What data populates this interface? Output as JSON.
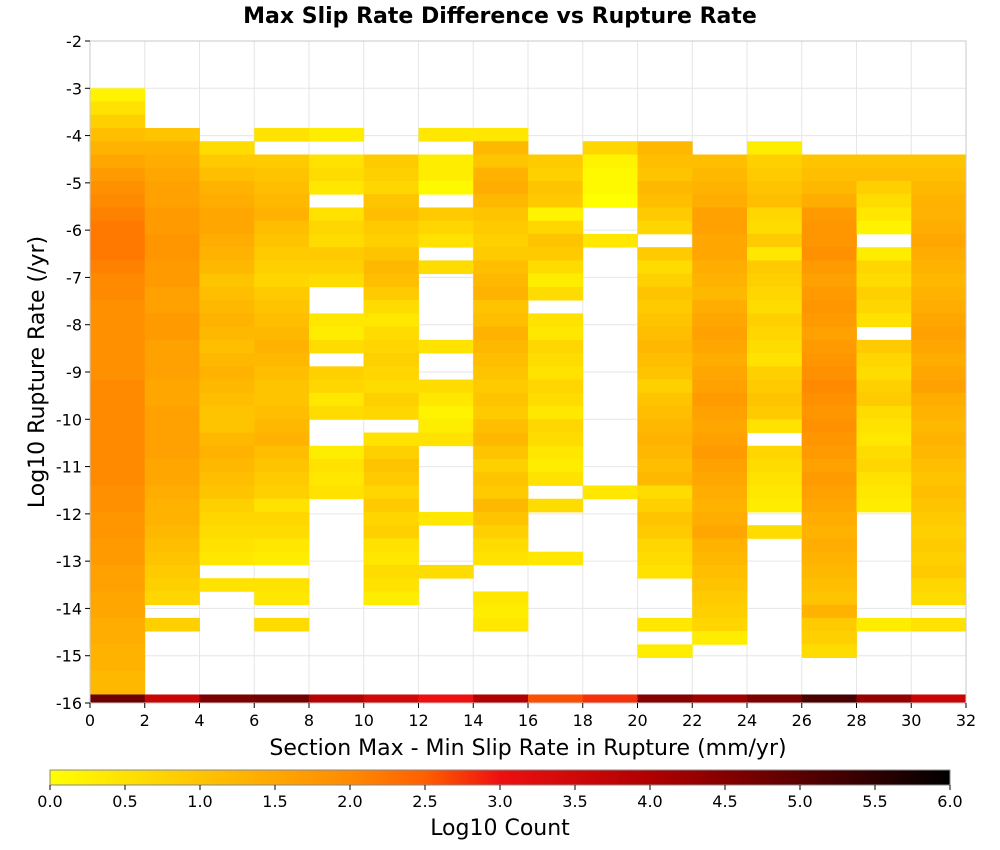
{
  "chart_data": {
    "type": "heatmap",
    "title": "Max Slip Rate Difference vs Rupture Rate",
    "xlabel": "Section Max - Min Slip Rate in Rupture (mm/yr)",
    "ylabel": "Log10 Rupture Rate (/yr)",
    "xlim": [
      0,
      32
    ],
    "ylim": [
      -16,
      -2
    ],
    "x_ticks": [
      "0",
      "2",
      "4",
      "6",
      "8",
      "10",
      "12",
      "14",
      "16",
      "18",
      "20",
      "22",
      "24",
      "26",
      "28",
      "30",
      "32"
    ],
    "y_ticks": [
      "-2",
      "-3",
      "-4",
      "-5",
      "-6",
      "-7",
      "-8",
      "-9",
      "-10",
      "-11",
      "-12",
      "-13",
      "-14",
      "-15",
      "-16"
    ],
    "x_bin_width": 2,
    "y_bin_height": 0.28,
    "colorbar": {
      "label": "Log10 Count",
      "range": [
        0,
        6
      ],
      "ticks": [
        "0.0",
        "0.5",
        "1.0",
        "1.5",
        "2.0",
        "2.5",
        "3.0",
        "3.5",
        "4.0",
        "4.5",
        "5.0",
        "5.5",
        "6.0"
      ]
    },
    "columns": [
      {
        "x_start": 0,
        "y_top": -3.0,
        "cells": [
          0.2,
          0.5,
          0.8,
          1.1,
          1.3,
          1.5,
          1.7,
          1.9,
          2.0,
          2.1,
          2.2,
          2.2,
          2.2,
          2.1,
          2.0,
          2.0,
          1.9,
          1.9,
          1.9,
          1.9,
          1.9,
          1.9,
          2.0,
          2.0,
          2.0,
          2.0,
          2.0,
          2.0,
          2.0,
          2.0,
          1.9,
          1.9,
          1.8,
          1.8,
          1.7,
          1.7,
          1.6,
          1.6,
          1.5,
          1.5,
          1.4,
          1.4,
          1.3,
          1.3,
          1.2,
          1.2,
          1.1,
          4.8
        ]
      },
      {
        "x_start": 2,
        "y_top": -3.84,
        "cells": [
          1.0,
          1.3,
          1.4,
          1.5,
          1.6,
          1.6,
          1.7,
          1.7,
          1.8,
          1.8,
          1.7,
          1.7,
          1.6,
          1.6,
          1.7,
          1.7,
          1.6,
          1.6,
          1.6,
          1.5,
          1.5,
          1.6,
          1.6,
          1.6,
          1.6,
          1.5,
          1.5,
          1.4,
          1.3,
          1.3,
          1.2,
          1.1,
          1.0,
          0.9,
          0.8,
          0.7,
          null,
          0.8,
          null,
          null,
          null,
          3.6
        ]
      },
      {
        "x_start": 4,
        "y_top": -4.12,
        "cells": [
          0.6,
          0.9,
          1.1,
          1.3,
          1.4,
          1.5,
          1.5,
          1.4,
          1.3,
          1.2,
          1.0,
          1.1,
          1.2,
          1.3,
          1.2,
          1.1,
          1.2,
          1.3,
          1.2,
          1.1,
          1.0,
          1.0,
          1.2,
          1.3,
          1.2,
          1.1,
          1.0,
          0.8,
          0.7,
          0.6,
          0.5,
          0.4,
          null,
          0.5,
          null,
          null,
          null,
          4.6
        ]
      },
      {
        "x_start": 6,
        "y_top": -3.84,
        "cells": [
          0.5,
          null,
          0.9,
          1.0,
          1.1,
          1.2,
          1.3,
          1.1,
          1.0,
          0.9,
          0.8,
          0.7,
          0.9,
          1.0,
          1.1,
          1.2,
          1.3,
          1.2,
          1.1,
          1.0,
          1.0,
          1.1,
          1.2,
          1.3,
          1.1,
          1.0,
          0.9,
          0.8,
          0.5,
          0.7,
          0.6,
          0.4,
          0.3,
          null,
          0.5,
          0.4,
          null,
          0.6,
          null,
          null,
          null,
          4.7
        ]
      },
      {
        "x_start": 8,
        "y_top": -3.84,
        "cells": [
          0.3,
          null,
          0.5,
          0.6,
          0.4,
          null,
          0.5,
          0.7,
          0.6,
          0.9,
          0.8,
          0.6,
          null,
          null,
          0.4,
          0.3,
          0.6,
          null,
          0.8,
          0.7,
          0.4,
          0.6,
          null,
          null,
          0.3,
          0.5,
          0.4,
          0.5,
          null,
          null,
          null,
          null,
          null,
          null,
          null,
          null,
          null,
          null,
          null,
          null,
          null,
          3.9
        ]
      },
      {
        "x_start": 10,
        "y_top": -4.4,
        "cells": [
          0.9,
          0.8,
          0.7,
          1.0,
          1.1,
          0.9,
          0.8,
          1.0,
          1.2,
          1.1,
          0.9,
          0.6,
          0.4,
          0.6,
          0.7,
          0.8,
          0.7,
          0.6,
          0.8,
          0.7,
          null,
          0.5,
          0.8,
          1.0,
          0.9,
          0.7,
          0.9,
          0.7,
          0.8,
          0.5,
          0.4,
          0.6,
          0.5,
          0.3,
          null,
          null,
          null,
          null,
          null,
          null,
          3.5
        ]
      },
      {
        "x_start": 12,
        "y_top": -3.84,
        "cells": [
          0.4,
          null,
          0.3,
          0.3,
          0.1,
          null,
          0.9,
          0.7,
          0.5,
          null,
          0.6,
          null,
          null,
          null,
          null,
          null,
          0.5,
          null,
          null,
          0.6,
          0.4,
          0.2,
          0.3,
          0.5,
          null,
          null,
          null,
          null,
          null,
          0.4,
          null,
          null,
          null,
          0.6,
          null,
          null,
          null,
          null,
          null,
          null,
          null,
          3.0
        ]
      },
      {
        "x_start": 14,
        "y_top": -3.84,
        "cells": [
          0.4,
          1.2,
          1.0,
          1.3,
          1.4,
          1.2,
          1.0,
          0.9,
          0.8,
          0.9,
          1.1,
          1.2,
          1.3,
          1.0,
          1.1,
          1.3,
          1.2,
          1.1,
          1.0,
          0.9,
          1.0,
          0.9,
          1.1,
          1.2,
          1.0,
          0.8,
          1.0,
          0.9,
          1.2,
          1.0,
          0.8,
          0.6,
          0.5,
          null,
          null,
          0.4,
          0.3,
          0.4,
          null,
          null,
          null,
          null,
          null,
          4.0
        ]
      },
      {
        "x_start": 16,
        "y_top": -4.4,
        "cells": [
          0.9,
          0.8,
          1.0,
          0.9,
          0.2,
          0.7,
          1.0,
          0.9,
          0.6,
          0.3,
          0.6,
          null,
          0.5,
          0.4,
          0.7,
          0.6,
          0.5,
          0.7,
          0.6,
          0.4,
          0.7,
          0.6,
          0.4,
          0.3,
          0.5,
          null,
          0.6,
          null,
          null,
          null,
          0.4,
          null,
          null,
          null,
          null,
          null,
          null,
          null,
          null,
          null,
          2.6
        ]
      },
      {
        "x_start": 18,
        "y_top": -4.12,
        "cells": [
          0.7,
          0.2,
          0.1,
          0.1,
          0.0,
          null,
          null,
          0.4,
          null,
          null,
          null,
          null,
          null,
          null,
          null,
          null,
          null,
          null,
          null,
          null,
          null,
          null,
          null,
          null,
          null,
          null,
          0.4,
          null,
          null,
          null,
          null,
          null,
          null,
          null,
          null,
          null,
          null,
          null,
          null,
          null,
          null,
          null,
          2.8
        ]
      },
      {
        "x_start": 20,
        "y_top": -4.12,
        "cells": [
          1.2,
          1.1,
          1.0,
          1.2,
          1.1,
          0.9,
          0.7,
          null,
          0.9,
          0.6,
          0.8,
          1.0,
          0.9,
          1.0,
          1.1,
          1.2,
          1.1,
          1.0,
          0.8,
          1.0,
          1.1,
          1.2,
          1.3,
          1.2,
          1.1,
          1.2,
          0.6,
          0.8,
          1.0,
          0.9,
          0.7,
          0.6,
          0.5,
          null,
          null,
          null,
          0.4,
          null,
          0.3,
          null,
          null,
          4.5
        ]
      },
      {
        "x_start": 22,
        "y_top": -4.4,
        "cells": [
          1.1,
          1.2,
          1.3,
          1.4,
          1.6,
          1.6,
          1.5,
          1.5,
          1.4,
          1.3,
          1.2,
          1.4,
          1.5,
          1.6,
          1.5,
          1.4,
          1.5,
          1.6,
          1.7,
          1.6,
          1.5,
          1.6,
          1.7,
          1.6,
          1.5,
          1.4,
          1.3,
          1.4,
          1.5,
          1.3,
          1.2,
          1.1,
          1.0,
          0.9,
          0.8,
          0.7,
          0.3,
          4.2
        ]
      },
      {
        "x_start": 24,
        "y_top": -4.12,
        "cells": [
          0.3,
          0.8,
          0.9,
          1.0,
          1.1,
          0.7,
          0.6,
          0.9,
          0.4,
          0.9,
          0.8,
          0.7,
          0.6,
          0.8,
          0.7,
          0.6,
          0.5,
          0.8,
          0.9,
          1.0,
          0.9,
          0.5,
          null,
          0.7,
          0.6,
          0.5,
          0.4,
          0.3,
          null,
          0.6,
          null,
          null,
          null,
          null,
          null,
          null,
          null,
          null,
          null,
          null,
          null,
          4.6
        ]
      },
      {
        "x_start": 26,
        "y_top": -4.4,
        "cells": [
          1.0,
          1.1,
          1.2,
          1.4,
          1.7,
          1.8,
          1.8,
          1.9,
          1.7,
          1.6,
          1.7,
          1.8,
          1.7,
          1.6,
          1.7,
          1.8,
          1.9,
          2.0,
          1.9,
          1.8,
          1.9,
          1.8,
          1.7,
          1.6,
          1.7,
          1.6,
          1.5,
          1.4,
          1.3,
          1.4,
          1.3,
          1.2,
          1.1,
          1.0,
          1.3,
          0.9,
          0.8,
          0.6,
          5.2
        ]
      },
      {
        "x_start": 28,
        "y_top": -4.4,
        "cells": [
          1.0,
          1.1,
          0.8,
          0.6,
          0.4,
          0.2,
          null,
          0.3,
          0.7,
          0.6,
          0.8,
          0.7,
          0.5,
          null,
          0.9,
          0.7,
          0.6,
          0.8,
          0.9,
          0.6,
          0.5,
          0.4,
          0.6,
          0.7,
          0.5,
          0.4,
          0.3,
          null,
          null,
          null,
          null,
          null,
          null,
          null,
          null,
          0.3,
          4.3
        ]
      },
      {
        "x_start": 30,
        "y_top": -4.4,
        "cells": [
          1.0,
          1.1,
          1.2,
          1.3,
          1.3,
          1.4,
          1.5,
          1.4,
          1.3,
          1.2,
          1.3,
          1.4,
          1.5,
          1.6,
          1.5,
          1.4,
          1.5,
          1.6,
          1.4,
          1.3,
          1.2,
          1.3,
          1.2,
          1.1,
          1.0,
          1.1,
          1.0,
          0.9,
          0.8,
          0.9,
          0.8,
          0.9,
          0.7,
          0.6,
          null,
          0.5,
          null,
          3.6
        ]
      }
    ]
  }
}
